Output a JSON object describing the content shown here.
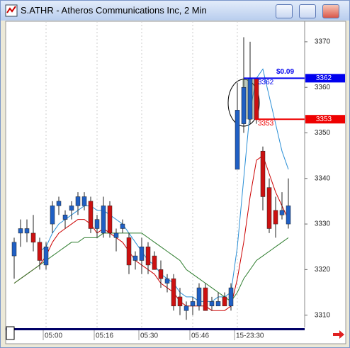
{
  "window": {
    "title": "S.ATHR - Atheros Communications Inc, 2 Min"
  },
  "chart_data": {
    "type": "candlestick",
    "categories": [
      null,
      null,
      null,
      null,
      null,
      "05:00",
      null,
      null,
      null,
      null,
      null,
      null,
      null,
      "05:16",
      null,
      null,
      null,
      null,
      null,
      null,
      "05:30",
      null,
      null,
      null,
      null,
      null,
      null,
      null,
      "05:46",
      null,
      null,
      null,
      null,
      null,
      null,
      "15-23:30",
      null,
      null,
      null,
      null,
      null,
      null,
      null,
      null
    ],
    "candles": {
      "open": [
        3323,
        3328,
        3328,
        3328,
        3326,
        3321,
        3330,
        3334,
        3331,
        3333,
        3334,
        3334,
        3335,
        3329,
        3328,
        3334,
        3327,
        3329,
        3327,
        3322,
        3322,
        3325,
        3323,
        3320,
        3317,
        3318,
        3314,
        3311,
        3312,
        3312,
        3316,
        3312,
        3312,
        3314,
        3312,
        3342,
        3352,
        3353,
        3362,
        3346,
        3338,
        3333,
        3332,
        3330
      ],
      "high": [
        3327,
        3331,
        3331,
        3332,
        3327,
        3326,
        3335,
        3336,
        3333,
        3335,
        3337,
        3337,
        3336,
        3332,
        3336,
        3335,
        3329,
        3331,
        3328,
        3324,
        3327,
        3326,
        3324,
        3322,
        3319,
        3319,
        3316,
        3313,
        3314,
        3317,
        3317,
        3314,
        3315,
        3315,
        3317,
        3361,
        3371,
        3370,
        3362,
        3347,
        3340,
        3336,
        3337,
        3340
      ],
      "low": [
        3318,
        3325,
        3326,
        3324,
        3320,
        3320,
        3328,
        3332,
        3329,
        3331,
        3332,
        3333,
        3328,
        3327,
        3327,
        3327,
        3324,
        3328,
        3319,
        3320,
        3319,
        3319,
        3320,
        3316,
        3315,
        3311,
        3310,
        3309,
        3310,
        3311,
        3311,
        3311,
        3312,
        3312,
        3311,
        3342,
        3350,
        3352,
        3352,
        3333,
        3328,
        3327,
        3331,
        3329
      ],
      "close": [
        3326,
        3329,
        3329,
        3326,
        3322,
        3325,
        3334,
        3335,
        3332,
        3334,
        3336,
        3336,
        3329,
        3331,
        3334,
        3328,
        3328,
        3330,
        3321,
        3323,
        3325,
        3321,
        3320,
        3318,
        3318,
        3312,
        3312,
        3312,
        3313,
        3316,
        3311,
        3313,
        3313,
        3312,
        3316,
        3355,
        3360,
        3362,
        3353,
        3336,
        3329,
        3330,
        3333,
        3334
      ]
    },
    "up_color": "#1f5fc4",
    "down_color": "#cc1111",
    "series": [
      {
        "color": "#cc0000",
        "values": [
          3317,
          3318,
          3319,
          3320,
          3321,
          3323,
          3326,
          3328,
          3329,
          3330,
          3331,
          3331,
          3330,
          3328,
          3329,
          3328,
          3327,
          3326,
          3324,
          3322,
          3321,
          3320,
          3319,
          3317,
          3316,
          3315,
          3313,
          3312,
          3312,
          3312,
          3312,
          3311,
          3311,
          3311,
          3312,
          3318,
          3326,
          3336,
          3344,
          3345,
          3341,
          3337,
          3334,
          3331
        ]
      },
      {
        "color": "#2a8fd6",
        "values": [
          null,
          null,
          null,
          null,
          3324,
          3325,
          3328,
          3330,
          3331,
          3332,
          3333,
          3334,
          3334,
          3333,
          3333,
          3332,
          3331,
          3330,
          3328,
          3326,
          3324,
          3322,
          3321,
          3319,
          3318,
          3317,
          3315,
          3314,
          3314,
          3313,
          3313,
          3313,
          3314,
          3314,
          3315,
          3325,
          3340,
          3355,
          3362,
          3364,
          3358,
          3352,
          3346,
          3342
        ]
      },
      {
        "color": "#2e7d2e",
        "values": [
          3317,
          3318,
          3319,
          3320,
          3321,
          3322,
          3323,
          3324,
          3325,
          3326,
          3326,
          3327,
          3327,
          3327,
          3328,
          3328,
          3328,
          3328,
          3328,
          3328,
          3328,
          3327,
          3326,
          3325,
          3324,
          3323,
          3322,
          3320,
          3319,
          3318,
          3317,
          3316,
          3315,
          3314,
          3313,
          3315,
          3318,
          3320,
          3322,
          3323,
          3324,
          3325,
          3326,
          3327
        ]
      }
    ],
    "ylim": [
      3307.3,
      3374.5
    ],
    "yticks": [
      3310,
      3320,
      3330,
      3340,
      3350,
      3360,
      3370
    ],
    "grid": true,
    "price_markers": [
      {
        "value": 3362,
        "color": "#0000ee"
      },
      {
        "value": 3353,
        "color": "#ee0000"
      }
    ],
    "annotation": "$0.09"
  }
}
